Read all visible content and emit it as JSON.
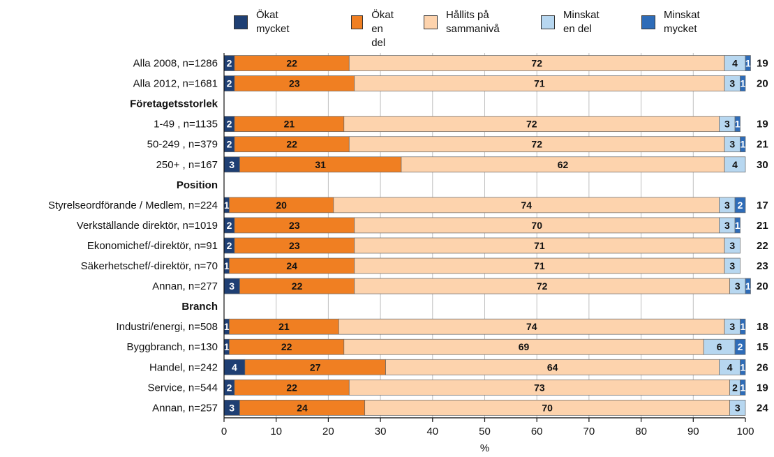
{
  "chart_data": {
    "type": "bar",
    "orientation": "horizontal",
    "stacked": true,
    "xlabel": "%",
    "xlim": [
      0,
      100
    ],
    "xticks": [
      0,
      10,
      20,
      30,
      40,
      50,
      60,
      70,
      80,
      90,
      100
    ],
    "grid": true,
    "legend_position": "top",
    "series": [
      {
        "name": "Ökat mycket",
        "label_lines": [
          "Ökat",
          "mycket"
        ],
        "color": "#1f3f73"
      },
      {
        "name": "Ökat en del",
        "label_lines": [
          "Ökat",
          "en del"
        ],
        "color": "#f07f22"
      },
      {
        "name": "Hållits på sammanivå",
        "label_lines": [
          "Hållits på",
          "sammanivå"
        ],
        "color": "#fdd3ad"
      },
      {
        "name": "Minskat en del",
        "label_lines": [
          "Minskat",
          "en del"
        ],
        "color": "#b7d7f0"
      },
      {
        "name": "Minskat mycket",
        "label_lines": [
          "Minskat",
          "mycket"
        ],
        "color": "#2e6cb8"
      }
    ],
    "rows": [
      {
        "label": "Alla 2008, n=1286",
        "type": "data",
        "values": [
          2,
          22,
          72,
          4,
          1
        ],
        "total": "19"
      },
      {
        "label": "Alla 2012, n=1681",
        "type": "data",
        "values": [
          2,
          23,
          71,
          3,
          1
        ],
        "total": "20"
      },
      {
        "label": "Företagetsstorlek",
        "type": "header"
      },
      {
        "label": "1-49 , n=1135",
        "type": "data",
        "values": [
          2,
          21,
          72,
          3,
          1
        ],
        "total": "19"
      },
      {
        "label": "50-249 , n=379",
        "type": "data",
        "values": [
          2,
          22,
          72,
          3,
          1
        ],
        "total": "21"
      },
      {
        "label": "250+ , n=167",
        "type": "data",
        "values": [
          3,
          31,
          62,
          4,
          0
        ],
        "total": "30"
      },
      {
        "label": "Position",
        "type": "header"
      },
      {
        "label": "Styrelseordförande / Medlem, n=224",
        "type": "data",
        "values": [
          1,
          20,
          74,
          3,
          2
        ],
        "total": "17"
      },
      {
        "label": "Verkställande direktör, n=1019",
        "type": "data",
        "values": [
          2,
          23,
          70,
          3,
          1
        ],
        "total": "21"
      },
      {
        "label": "Ekonomichef/-direktör, n=91",
        "type": "data",
        "values": [
          2,
          23,
          71,
          3,
          0
        ],
        "total": "22"
      },
      {
        "label": "Säkerhetschef/-direktör, n=70",
        "type": "data",
        "values": [
          1,
          24,
          71,
          3,
          0
        ],
        "total": "23"
      },
      {
        "label": "Annan, n=277",
        "type": "data",
        "values": [
          3,
          22,
          72,
          3,
          1
        ],
        "total": "20"
      },
      {
        "label": "Branch",
        "type": "header"
      },
      {
        "label": "Industri/energi, n=508",
        "type": "data",
        "values": [
          1,
          21,
          74,
          3,
          1
        ],
        "total": "18"
      },
      {
        "label": "Byggbranch, n=130",
        "type": "data",
        "values": [
          1,
          22,
          69,
          6,
          2
        ],
        "total": "15"
      },
      {
        "label": "Handel, n=242",
        "type": "data",
        "values": [
          4,
          27,
          64,
          4,
          1
        ],
        "total": "26"
      },
      {
        "label": "Service, n=544",
        "type": "data",
        "values": [
          2,
          22,
          73,
          2,
          1
        ],
        "total": "19"
      },
      {
        "label": "Annan, n=257",
        "type": "data",
        "values": [
          3,
          24,
          70,
          3,
          0
        ],
        "total": "24"
      }
    ]
  }
}
